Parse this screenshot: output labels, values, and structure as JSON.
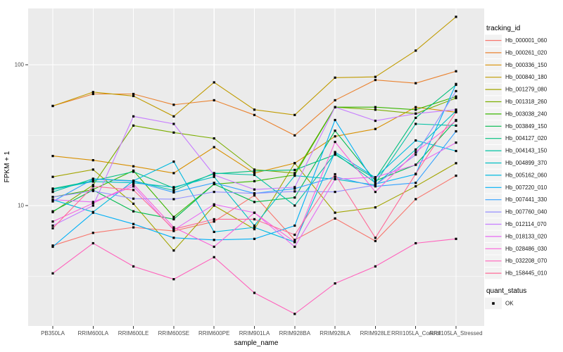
{
  "chart_data": {
    "type": "line",
    "title": "",
    "xlabel": "sample_name",
    "ylabel": "FPKM + 1",
    "x_type": "categorical",
    "y_scale": "log10",
    "ylim": [
      1.4,
      250
    ],
    "y_major_ticks": [
      {
        "value": 100,
        "label": "100"
      },
      {
        "value": 10,
        "label": "10"
      }
    ],
    "y_minor_gridlines": [
      31.6,
      3.16
    ],
    "grid": "on",
    "categories": [
      "PB350LA",
      "RRIM600LA",
      "RRIM600LE",
      "RRIM600SE",
      "RRIM600PE",
      "RRIM901LA",
      "RRIM928BA",
      "RRIM928LA",
      "RRIM928LE",
      "RRII105LA_Control",
      "RRII105LA_Stressed"
    ],
    "series": [
      {
        "name": "Hb_000001_060",
        "color": "#F8766D",
        "values": [
          5.2,
          6.4,
          7.0,
          6.6,
          7.7,
          11.8,
          5.7,
          8.1,
          5.6,
          11.1,
          16.3
        ]
      },
      {
        "name": "Hb_000261_020",
        "color": "#EA8331",
        "values": [
          51,
          62,
          62,
          52,
          56,
          44,
          31.5,
          56,
          78,
          74,
          90
        ]
      },
      {
        "name": "Hb_000336_150",
        "color": "#D89000",
        "values": [
          22.5,
          21,
          19,
          17,
          26,
          17,
          20,
          31,
          35,
          50,
          46
        ]
      },
      {
        "name": "Hb_000840_180",
        "color": "#C09B00",
        "values": [
          51,
          64,
          60,
          43,
          75,
          48,
          44,
          81,
          82,
          126,
          219
        ]
      },
      {
        "name": "Hb_001279_080",
        "color": "#A3A500",
        "values": [
          16,
          18,
          10.3,
          4.8,
          10,
          6.8,
          20,
          8.9,
          9.7,
          13.7,
          20
        ]
      },
      {
        "name": "Hb_001318_260",
        "color": "#7CAE00",
        "values": [
          9,
          14,
          37,
          33,
          30,
          18,
          17,
          50,
          48,
          45,
          58
        ]
      },
      {
        "name": "Hb_003038_240",
        "color": "#39B600",
        "values": [
          11.5,
          13,
          17.7,
          8.3,
          14.2,
          14.9,
          16.5,
          50,
          50,
          48,
          59.5
        ]
      },
      {
        "name": "Hb_003849_150",
        "color": "#00BB4E",
        "values": [
          9.1,
          12.9,
          9.1,
          8.0,
          14.2,
          10.6,
          11.4,
          34,
          15,
          19.5,
          40.5
        ]
      },
      {
        "name": "Hb_004127_020",
        "color": "#00BF7D",
        "values": [
          13.2,
          15,
          17.4,
          13.3,
          16.8,
          17.6,
          17.9,
          23,
          15.5,
          42,
          72
        ]
      },
      {
        "name": "Hb_004143_150",
        "color": "#00C1A3",
        "values": [
          12.5,
          15.5,
          15,
          12.8,
          17,
          16.5,
          10,
          23.5,
          14.5,
          38,
          37
        ]
      },
      {
        "name": "Hb_004899_370",
        "color": "#00BFC4",
        "values": [
          13,
          14.8,
          14.5,
          13.5,
          16,
          7.2,
          16.3,
          15.4,
          14,
          25,
          47
        ]
      },
      {
        "name": "Hb_005162_060",
        "color": "#00BAE0",
        "values": [
          11,
          9,
          15,
          20.5,
          6.5,
          7,
          5.5,
          24,
          15.8,
          29,
          24.4
        ]
      },
      {
        "name": "Hb_007220_010",
        "color": "#00B0F6",
        "values": [
          5.1,
          8.9,
          7.4,
          5.9,
          5.7,
          5.8,
          7.2,
          40.5,
          14.2,
          16.7,
          73
        ]
      },
      {
        "name": "Hb_007441_330",
        "color": "#35A2FF",
        "values": [
          10.7,
          15.4,
          14.9,
          12.4,
          14.5,
          12.2,
          13.2,
          16,
          13.7,
          14.5,
          33.7
        ]
      },
      {
        "name": "Hb_007760_040",
        "color": "#9590FF",
        "values": [
          11.5,
          12.7,
          11.2,
          11.1,
          12.5,
          12.2,
          12.6,
          12.5,
          14,
          23,
          65
        ]
      },
      {
        "name": "Hb_012114_070",
        "color": "#C77CFF",
        "values": [
          7.2,
          10,
          43,
          38,
          16.5,
          13,
          13.5,
          50,
          40,
          45,
          48
        ]
      },
      {
        "name": "Hb_018133_020",
        "color": "#E76BF3",
        "values": [
          11,
          10.6,
          13.7,
          6.7,
          10.2,
          8.9,
          5.1,
          15.4,
          15.9,
          19.5,
          28
        ]
      },
      {
        "name": "Hb_028486_030",
        "color": "#FA62DB",
        "values": [
          7.7,
          10.4,
          14.2,
          7.0,
          5.1,
          8.9,
          5.5,
          28.3,
          12.5,
          24,
          40
        ]
      },
      {
        "name": "Hb_032208_070",
        "color": "#FF62BC",
        "values": [
          3.3,
          5.4,
          3.7,
          3.0,
          4.3,
          2.4,
          1.7,
          2.8,
          3.7,
          5.4,
          5.8
        ]
      },
      {
        "name": "Hb_158445_010",
        "color": "#FF6A98",
        "values": [
          6.9,
          13.7,
          12.9,
          6.8,
          8.0,
          8.0,
          6.2,
          16.7,
          5.9,
          16.8,
          46
        ]
      }
    ],
    "legend": {
      "position": "right",
      "series_legend_title": "tracking_id",
      "point_legend_title": "quant_status",
      "point_legend_entries": [
        {
          "label": "OK",
          "shape": "filled-square",
          "color": "#000000"
        }
      ]
    },
    "style": {
      "panel_bg": "#EBEBEB",
      "grid_color": "#FFFFFF",
      "point_color": "#000000",
      "axis_text_color": "#4D4D4D",
      "axis_title_color": "#000000",
      "tick_mark_color": "#333333",
      "legend_key_bg": "#F2F2F2"
    }
  }
}
